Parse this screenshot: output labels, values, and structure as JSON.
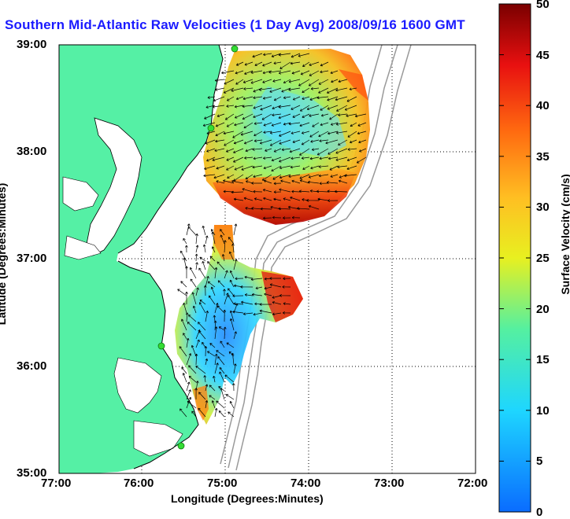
{
  "title": "Southern Mid-Atlantic Raw Velocities (1 Day Avg) 2008/09/16 1600 GMT",
  "axes": {
    "xlabel": "Longitude (Degrees:Minutes)",
    "ylabel": "Latitude (Degrees:Minutes)",
    "xticks": [
      "77:00",
      "76:00",
      "75:00",
      "74:00",
      "73:00",
      "72:00"
    ],
    "yticks": [
      "39:00",
      "38:00",
      "37:00",
      "36:00",
      "35:00"
    ]
  },
  "colorbar": {
    "label": "Surface Velocity (cm/s)",
    "ticks": [
      "50",
      "45",
      "40",
      "35",
      "30",
      "25",
      "20",
      "15",
      "10",
      "5",
      "0"
    ],
    "min": 0,
    "max": 50
  },
  "colors": {
    "land": "#55f0a5",
    "title": "#1a1aff",
    "contour": "#999999",
    "station": "#33dd33"
  },
  "chart_data": {
    "type": "heatmap",
    "title": "Southern Mid-Atlantic Raw Velocities (1 Day Avg) 2008/09/16 1600 GMT",
    "xlabel": "Longitude (Degrees:Minutes)",
    "ylabel": "Latitude (Degrees:Minutes)",
    "xlim": [
      "77:00",
      "72:00"
    ],
    "ylim": [
      "35:00",
      "39:00"
    ],
    "grid": true,
    "colorbar_range": [
      0,
      50
    ],
    "colorbar_label": "Surface Velocity (cm/s)"
  }
}
